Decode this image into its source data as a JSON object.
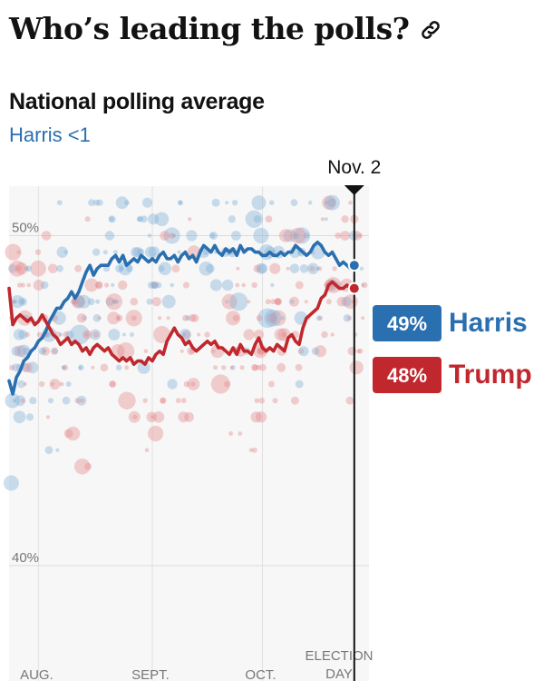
{
  "headline": "Who’s leading the polls?",
  "link_icon": "link-icon",
  "subheading": "National polling average",
  "leader_text": "Harris <1",
  "colors": {
    "harris": "#2a6fb0",
    "trump": "#c0282e",
    "harris_dot": "#7fb0d8",
    "trump_dot": "#e7898c",
    "plot_bg": "#f7f7f7"
  },
  "chart_data": {
    "type": "line",
    "title": "National polling average",
    "xlabel": "",
    "ylabel": "",
    "ylim": [
      36.5,
      51.5
    ],
    "grid": true,
    "x_ticks": [
      {
        "label": "AUG.",
        "day": 8
      },
      {
        "label": "SEPT.",
        "day": 39
      },
      {
        "label": "OCT.",
        "day": 69
      }
    ],
    "x_range_days": [
      0,
      98
    ],
    "y_ticks": [
      {
        "label": "50%",
        "value": 50
      },
      {
        "label": "40%",
        "value": 40
      }
    ],
    "election_day_label": [
      "ELECTION",
      "DAY"
    ],
    "current_marker": {
      "label": "Nov. 2",
      "day": 94
    },
    "series": [
      {
        "name": "Harris",
        "end_label": "49%",
        "values": [
          45.6,
          45.2,
          45.7,
          45.9,
          46.2,
          46.3,
          46.5,
          46.6,
          46.8,
          46.9,
          47.1,
          47.4,
          47.6,
          47.8,
          47.8,
          48.0,
          48.1,
          48.3,
          48.1,
          48.3,
          48.6,
          48.9,
          49.1,
          48.8,
          49.0,
          49.1,
          49.1,
          49.1,
          49.3,
          49.4,
          49.2,
          49.4,
          49.1,
          49.2,
          49.3,
          49.2,
          49.4,
          49.3,
          49.2,
          49.3,
          49.2,
          49.4,
          49.5,
          49.3,
          49.3,
          49.4,
          49.2,
          49.4,
          49.5,
          49.3,
          49.4,
          49.2,
          49.5,
          49.7,
          49.6,
          49.5,
          49.7,
          49.5,
          49.4,
          49.6,
          49.5,
          49.6,
          49.4,
          49.7,
          49.5,
          49.6,
          49.6,
          49.5,
          49.5,
          49.4,
          49.4,
          49.5,
          49.4,
          49.4,
          49.5,
          49.4,
          49.5,
          49.5,
          49.7,
          49.6,
          49.5,
          49.4,
          49.5,
          49.7,
          49.8,
          49.7,
          49.5,
          49.4,
          49.5,
          49.3,
          49.1,
          49.2,
          49.1,
          49.0,
          49.1
        ]
      },
      {
        "name": "Trump",
        "end_label": "48%",
        "values": [
          48.4,
          47.3,
          47.5,
          47.6,
          47.5,
          47.4,
          47.5,
          47.3,
          47.4,
          47.6,
          47.4,
          47.2,
          47.0,
          46.9,
          46.7,
          46.8,
          46.9,
          46.7,
          46.8,
          46.7,
          46.5,
          46.6,
          46.4,
          46.6,
          46.7,
          46.6,
          46.5,
          46.6,
          46.4,
          46.3,
          46.2,
          46.3,
          46.2,
          46.3,
          46.1,
          46.2,
          46.2,
          46.1,
          46.3,
          46.2,
          46.4,
          46.5,
          46.4,
          46.8,
          47.0,
          47.2,
          47.0,
          46.9,
          46.7,
          46.8,
          46.6,
          46.5,
          46.6,
          46.7,
          46.8,
          46.7,
          46.8,
          46.6,
          46.6,
          46.5,
          46.4,
          46.6,
          46.4,
          46.7,
          46.5,
          46.5,
          46.4,
          46.7,
          46.9,
          46.6,
          46.5,
          46.6,
          46.5,
          46.7,
          46.6,
          46.5,
          46.9,
          47.0,
          46.8,
          46.7,
          47.2,
          47.5,
          47.6,
          47.7,
          47.8,
          48.1,
          48.2,
          48.5,
          48.6,
          48.5,
          48.4,
          48.4,
          48.5,
          48.4,
          48.4
        ]
      }
    ]
  }
}
